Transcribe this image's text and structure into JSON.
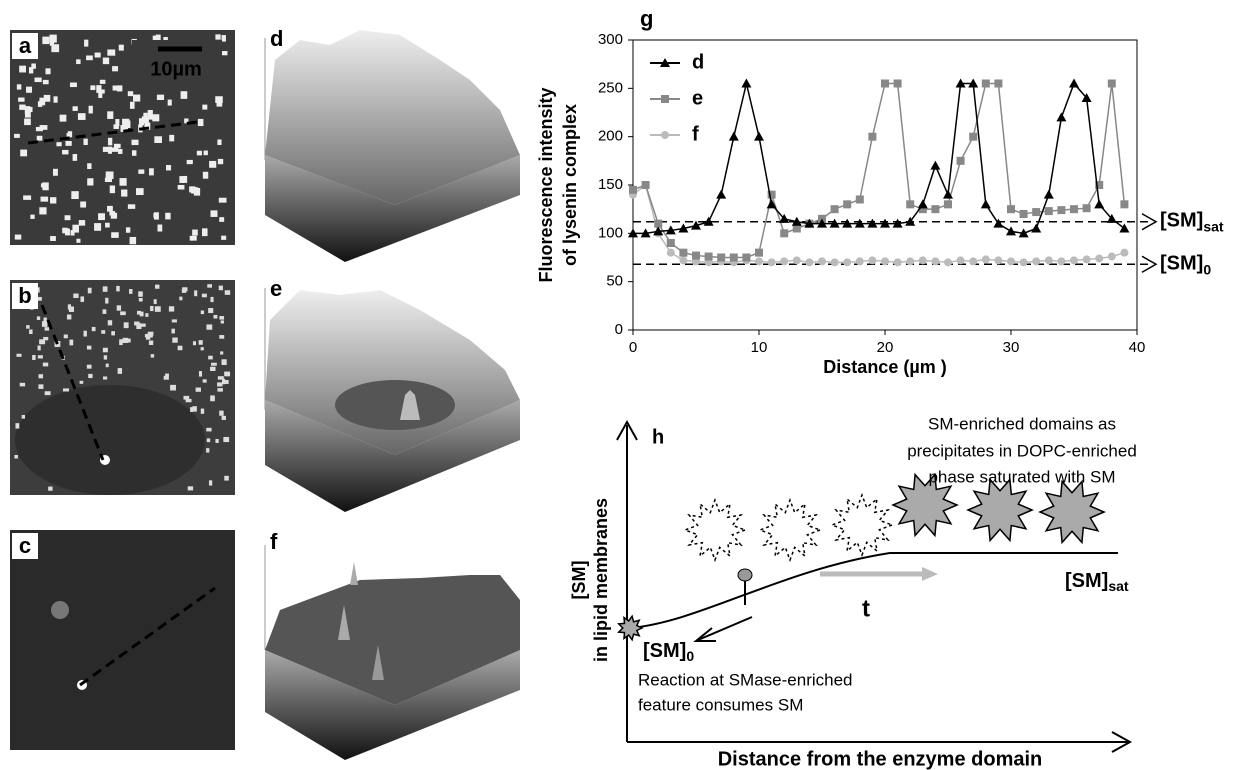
{
  "panels": {
    "a": {
      "label": "a",
      "scale_bar": "10µm"
    },
    "b": {
      "label": "b"
    },
    "c": {
      "label": "c"
    },
    "d": {
      "label": "d"
    },
    "e": {
      "label": "e"
    },
    "f": {
      "label": "f"
    },
    "g": {
      "label": "g"
    },
    "h": {
      "label": "h",
      "y_label": [
        "[SM]",
        "in lipid membranes"
      ],
      "x_label": "Distance from the enzyme domain",
      "top_note": [
        "SM-enriched domains as",
        "precipitates in DOPC-enriched",
        "phase saturated with SM"
      ],
      "sat_label": {
        "main": "[SM]",
        "sub": "sat"
      },
      "zero_label": {
        "main": "[SM]",
        "sub": "0"
      },
      "time_label": "t",
      "bottom_note": [
        "Reaction at SMase-enriched",
        "feature consumes SM"
      ]
    }
  },
  "chart_data": {
    "type": "line",
    "y_label": [
      "Fluorescence intensity",
      "of lysenin complex"
    ],
    "x_label": "Distance (µm )",
    "x": [
      0,
      1,
      2,
      3,
      4,
      5,
      6,
      7,
      8,
      9,
      10,
      11,
      12,
      13,
      14,
      15,
      16,
      17,
      18,
      19,
      20,
      21,
      22,
      23,
      24,
      25,
      26,
      27,
      28,
      29,
      30,
      31,
      32,
      33,
      34,
      35,
      36,
      37,
      38,
      39
    ],
    "series": [
      {
        "name": "d",
        "color": "#000000",
        "marker": "triangle",
        "values": [
          100,
          100,
          102,
          103,
          105,
          108,
          112,
          140,
          200,
          255,
          200,
          130,
          115,
          112,
          110,
          110,
          110,
          110,
          110,
          110,
          110,
          110,
          112,
          130,
          170,
          140,
          255,
          255,
          130,
          110,
          102,
          100,
          105,
          140,
          220,
          255,
          240,
          130,
          115,
          105
        ]
      },
      {
        "name": "e",
        "color": "#888888",
        "marker": "square",
        "values": [
          145,
          150,
          110,
          90,
          80,
          77,
          76,
          75,
          75,
          75,
          80,
          140,
          100,
          105,
          110,
          115,
          125,
          130,
          135,
          200,
          255,
          255,
          130,
          125,
          125,
          130,
          175,
          200,
          255,
          255,
          125,
          120,
          122,
          123,
          124,
          125,
          126,
          150,
          255,
          130
        ]
      },
      {
        "name": "f",
        "color": "#bbbbbb",
        "marker": "circle",
        "values": [
          140,
          150,
          100,
          80,
          72,
          71,
          70,
          71,
          70,
          72,
          71,
          70,
          71,
          72,
          70,
          71,
          70,
          70,
          71,
          72,
          71,
          70,
          71,
          72,
          71,
          70,
          72,
          71,
          73,
          72,
          71,
          70,
          71,
          72,
          71,
          72,
          73,
          74,
          76,
          80
        ]
      }
    ],
    "reference_lines": [
      {
        "value": 112,
        "label": {
          "main": "[SM]",
          "sub": "sat"
        }
      },
      {
        "value": 68,
        "label": {
          "main": "[SM]",
          "sub": "0"
        }
      }
    ],
    "xlim": [
      0,
      40
    ],
    "ylim": [
      0,
      300
    ],
    "xticks": [
      0,
      10,
      20,
      30,
      40
    ],
    "yticks": [
      0,
      50,
      100,
      150,
      200,
      250,
      300
    ]
  }
}
